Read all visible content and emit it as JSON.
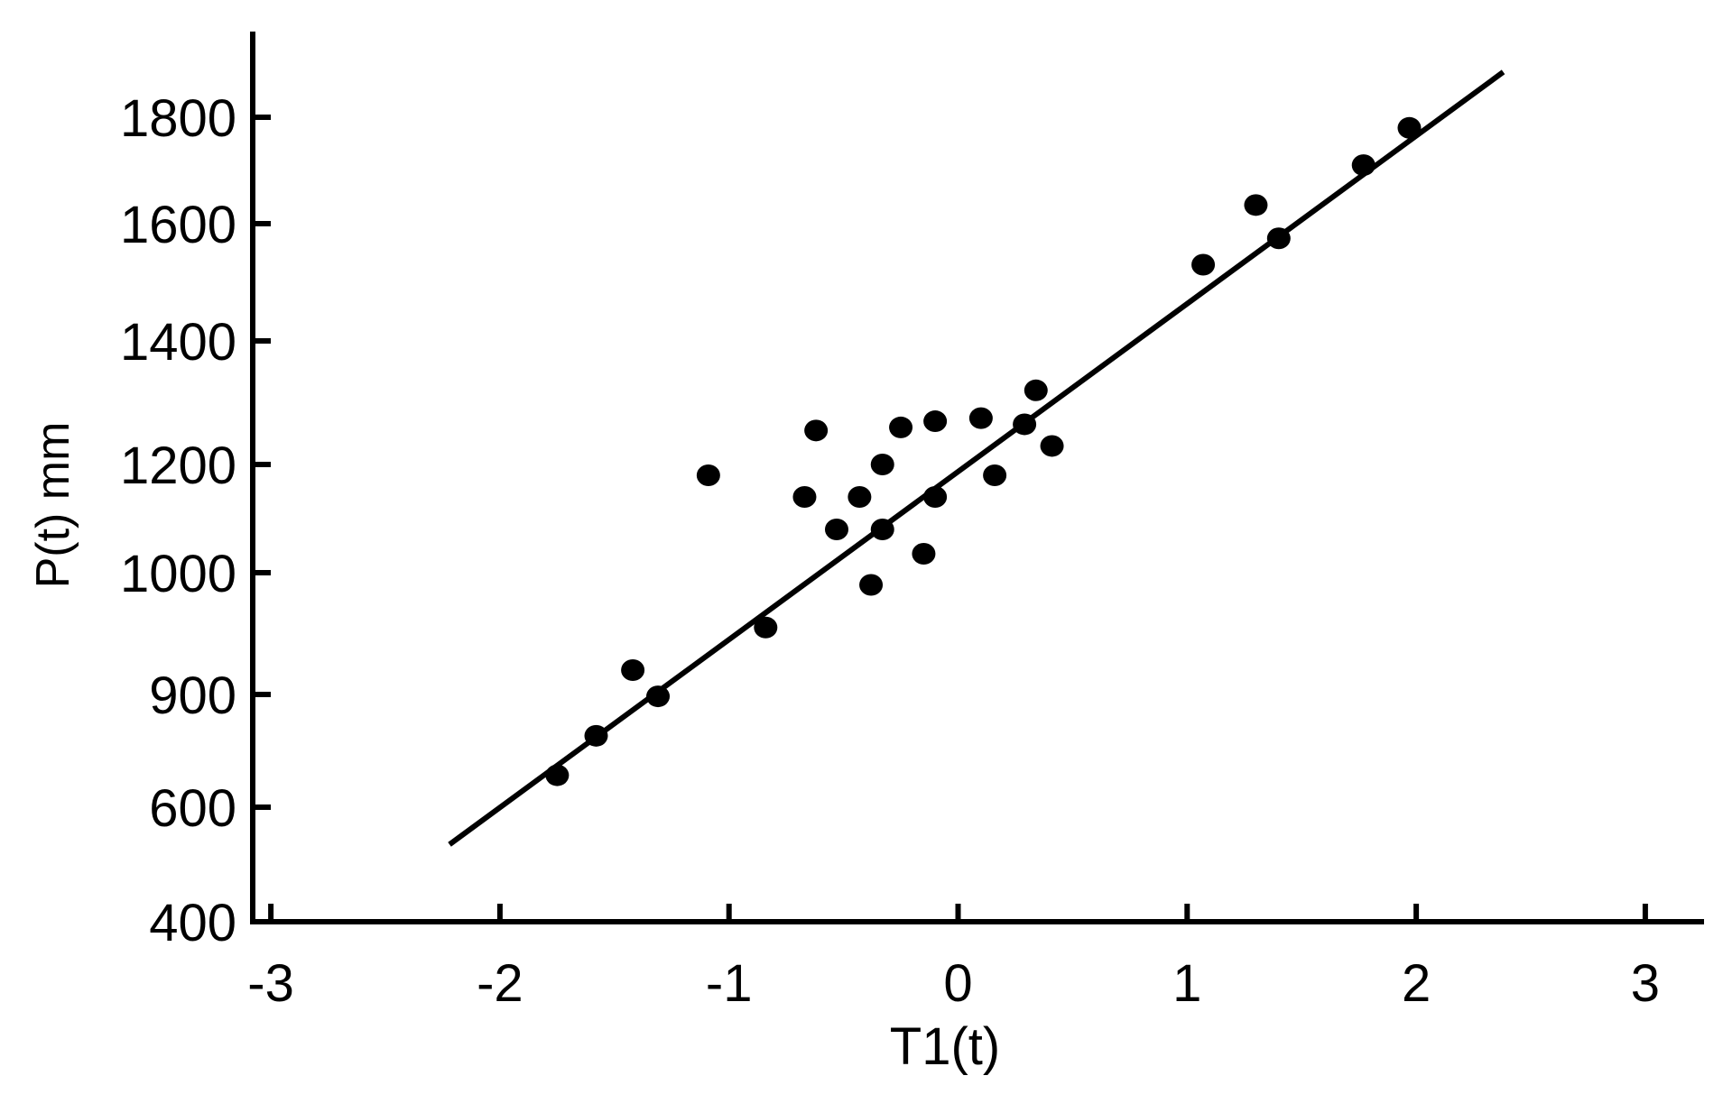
{
  "chart_data": {
    "type": "scatter",
    "title": "",
    "xlabel": "T1(t)",
    "ylabel": "P(t) mm",
    "xlim": [
      -3,
      3
    ],
    "ylim": [
      400,
      1900
    ],
    "x_ticks": [
      -3,
      -2,
      -1,
      0,
      1,
      2,
      3
    ],
    "x_tick_labels": [
      "-3",
      "-2",
      "-1",
      "0",
      "1",
      "2",
      "3"
    ],
    "y_ticks": [
      400,
      600,
      900,
      1000,
      1200,
      1400,
      1600,
      1800
    ],
    "y_tick_labels": [
      "400",
      "600",
      "900",
      "1000",
      "1200",
      "1400",
      "1600",
      "1800"
    ],
    "grid": false,
    "points": [
      {
        "x": -1.75,
        "y": 685
      },
      {
        "x": -1.58,
        "y": 790
      },
      {
        "x": -1.42,
        "y": 920
      },
      {
        "x": -1.31,
        "y": 895
      },
      {
        "x": -1.09,
        "y": 1180
      },
      {
        "x": -0.84,
        "y": 955
      },
      {
        "x": -0.67,
        "y": 1140
      },
      {
        "x": -0.62,
        "y": 1255
      },
      {
        "x": -0.53,
        "y": 1080
      },
      {
        "x": -0.43,
        "y": 1140
      },
      {
        "x": -0.38,
        "y": 990
      },
      {
        "x": -0.33,
        "y": 1080
      },
      {
        "x": -0.33,
        "y": 1200
      },
      {
        "x": -0.25,
        "y": 1260
      },
      {
        "x": -0.15,
        "y": 1035
      },
      {
        "x": -0.1,
        "y": 1270
      },
      {
        "x": -0.1,
        "y": 1140
      },
      {
        "x": 0.1,
        "y": 1275
      },
      {
        "x": 0.16,
        "y": 1180
      },
      {
        "x": 0.29,
        "y": 1265
      },
      {
        "x": 0.34,
        "y": 1320
      },
      {
        "x": 0.41,
        "y": 1230
      },
      {
        "x": 1.07,
        "y": 1530
      },
      {
        "x": 1.3,
        "y": 1635
      },
      {
        "x": 1.4,
        "y": 1575
      },
      {
        "x": 1.77,
        "y": 1710
      },
      {
        "x": 1.97,
        "y": 1780
      }
    ],
    "fit_line": {
      "x": [
        -2.22,
        2.38
      ],
      "y": [
        535,
        1885
      ]
    },
    "colors": {
      "points": "#000000",
      "line": "#000000",
      "axes": "#000000"
    }
  }
}
